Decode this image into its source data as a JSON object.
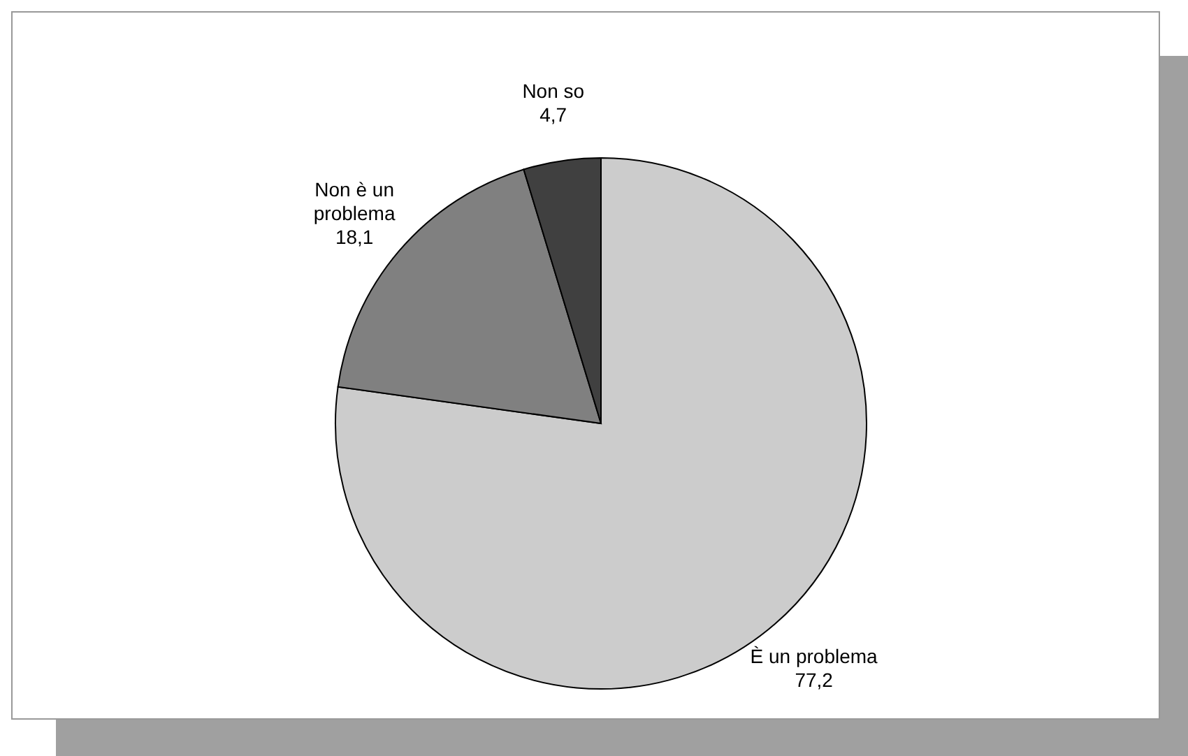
{
  "chart_data": {
    "type": "pie",
    "categories": [
      "È un problema",
      "Non è un problema",
      "Non so"
    ],
    "values": [
      77.2,
      18.1,
      4.7
    ],
    "colors": [
      "#cccccc",
      "#808080",
      "#404040"
    ],
    "value_labels": [
      "77,2",
      "18,1",
      "4,7"
    ],
    "legend": false
  }
}
